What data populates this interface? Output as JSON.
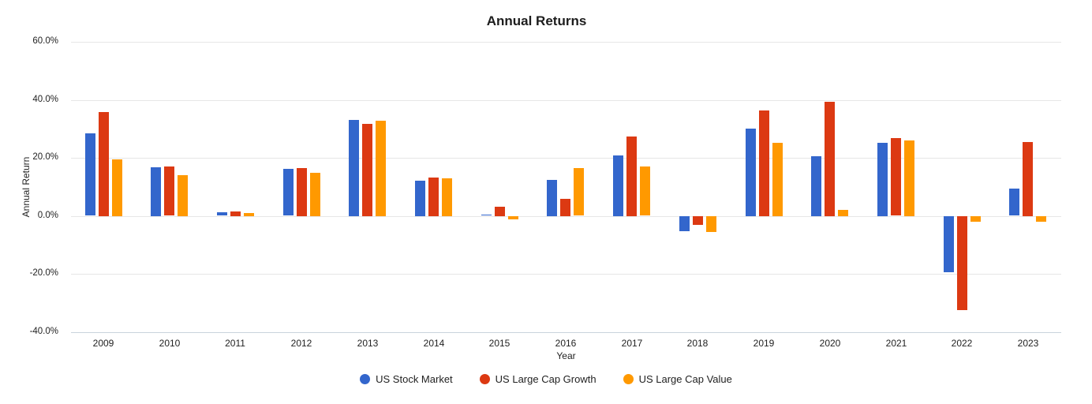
{
  "chart_data": {
    "type": "bar",
    "title": "Annual Returns",
    "xlabel": "Year",
    "ylabel": "Annual Return",
    "ylim": [
      -40,
      60
    ],
    "grid": true,
    "legend_position": "bottom",
    "background": "#ffffff",
    "yticks": [
      {
        "label": "60.0%",
        "value": 60
      },
      {
        "label": "40.0%",
        "value": 40
      },
      {
        "label": "20.0%",
        "value": 20
      },
      {
        "label": "0.0%",
        "value": 0
      },
      {
        "label": "-20.0%",
        "value": -20
      },
      {
        "label": "-40.0%",
        "value": -40
      }
    ],
    "categories": [
      "2009",
      "2010",
      "2011",
      "2012",
      "2013",
      "2014",
      "2015",
      "2016",
      "2017",
      "2018",
      "2019",
      "2020",
      "2021",
      "2022",
      "2023"
    ],
    "series": [
      {
        "name": "US Stock Market",
        "color": "#3366CC",
        "values": [
          28.3,
          16.8,
          1.1,
          16.1,
          33.1,
          12.2,
          0.3,
          12.5,
          20.9,
          -5.2,
          30.1,
          20.6,
          25.2,
          -19.2,
          9.3
        ]
      },
      {
        "name": "US Large Cap Growth",
        "color": "#DC3912",
        "values": [
          35.9,
          16.9,
          1.6,
          16.5,
          31.8,
          13.2,
          3.2,
          5.9,
          27.4,
          -3.0,
          36.4,
          39.4,
          26.8,
          -32.5,
          25.5
        ]
      },
      {
        "name": "US Large Cap Value",
        "color": "#FF9900",
        "values": [
          19.5,
          14.1,
          1.0,
          14.9,
          32.8,
          13.0,
          -1.0,
          16.4,
          16.9,
          -5.4,
          25.2,
          2.1,
          26.0,
          -1.8,
          -1.8
        ]
      }
    ]
  }
}
